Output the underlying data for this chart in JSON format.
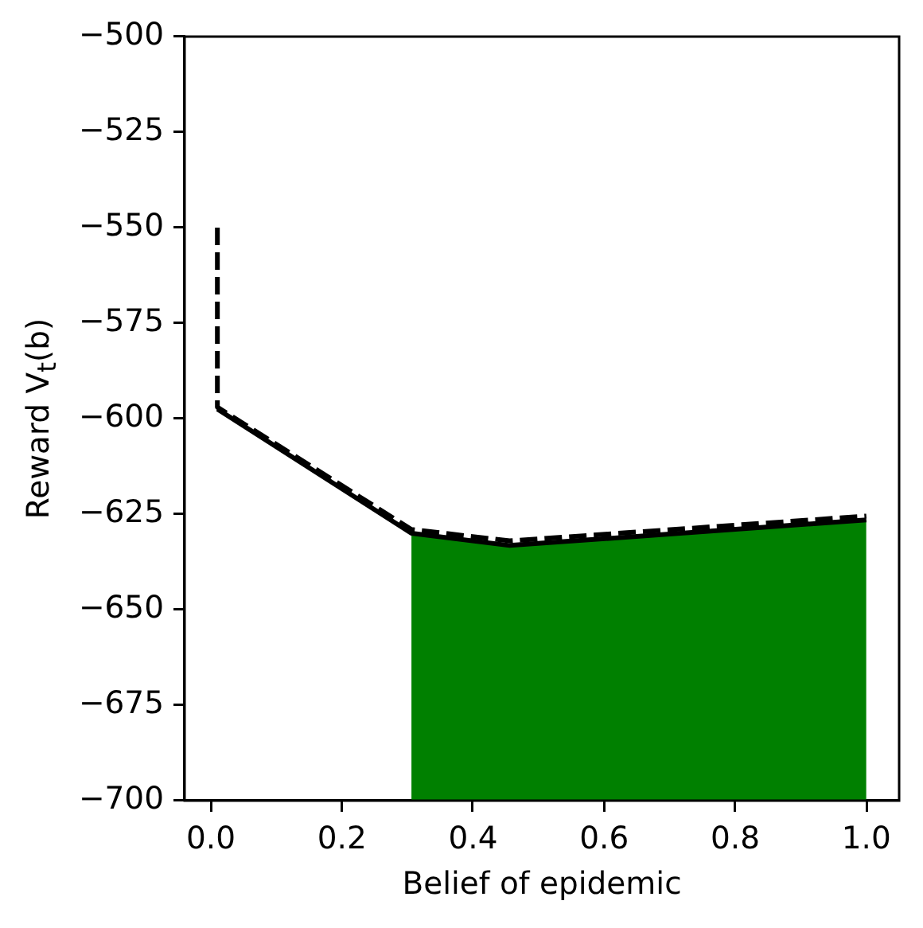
{
  "chart_data": {
    "type": "line",
    "xlabel": "Belief of epidemic",
    "ylabel": "Reward V$_{t}$(b)",
    "xlim": [
      -0.04,
      1.05
    ],
    "ylim": [
      -700,
      -500
    ],
    "xticks": [
      {
        "value": 0,
        "label": "0.0"
      },
      {
        "value": 0.2,
        "label": "0.2"
      },
      {
        "value": 0.4,
        "label": "0.4"
      },
      {
        "value": 0.6,
        "label": "0.6"
      },
      {
        "value": 0.8,
        "label": "0.8"
      },
      {
        "value": 1,
        "label": "1.0"
      }
    ],
    "yticks": [
      {
        "value": -700,
        "label": "−700"
      },
      {
        "value": -675,
        "label": "−675"
      },
      {
        "value": -650,
        "label": "−650"
      },
      {
        "value": -625,
        "label": "−625"
      },
      {
        "value": -600,
        "label": "−600"
      },
      {
        "value": -575,
        "label": "−575"
      },
      {
        "value": -550,
        "label": "−550"
      },
      {
        "value": -525,
        "label": "−525"
      },
      {
        "value": -500,
        "label": "−500"
      }
    ],
    "series": [
      {
        "type": "area",
        "color": "#008000",
        "x": [
          0.306,
          0.306,
          0.456,
          1.0,
          1.0
        ],
        "values": [
          -700,
          -630,
          -633.2,
          -626.5,
          -700
        ]
      },
      {
        "type": "line",
        "color": "#000000",
        "line_style": "solid",
        "x": [
          0.01,
          0.306,
          0.456,
          1.0
        ],
        "values": [
          -597.5,
          -630,
          -633.2,
          -626.5
        ]
      },
      {
        "type": "line",
        "color": "#000000",
        "line_style": "dashed",
        "x": [
          0.01,
          0.01,
          0.306,
          0.456,
          1.0
        ],
        "values": [
          -550,
          -597,
          -629,
          -632,
          -625.5
        ]
      }
    ]
  }
}
